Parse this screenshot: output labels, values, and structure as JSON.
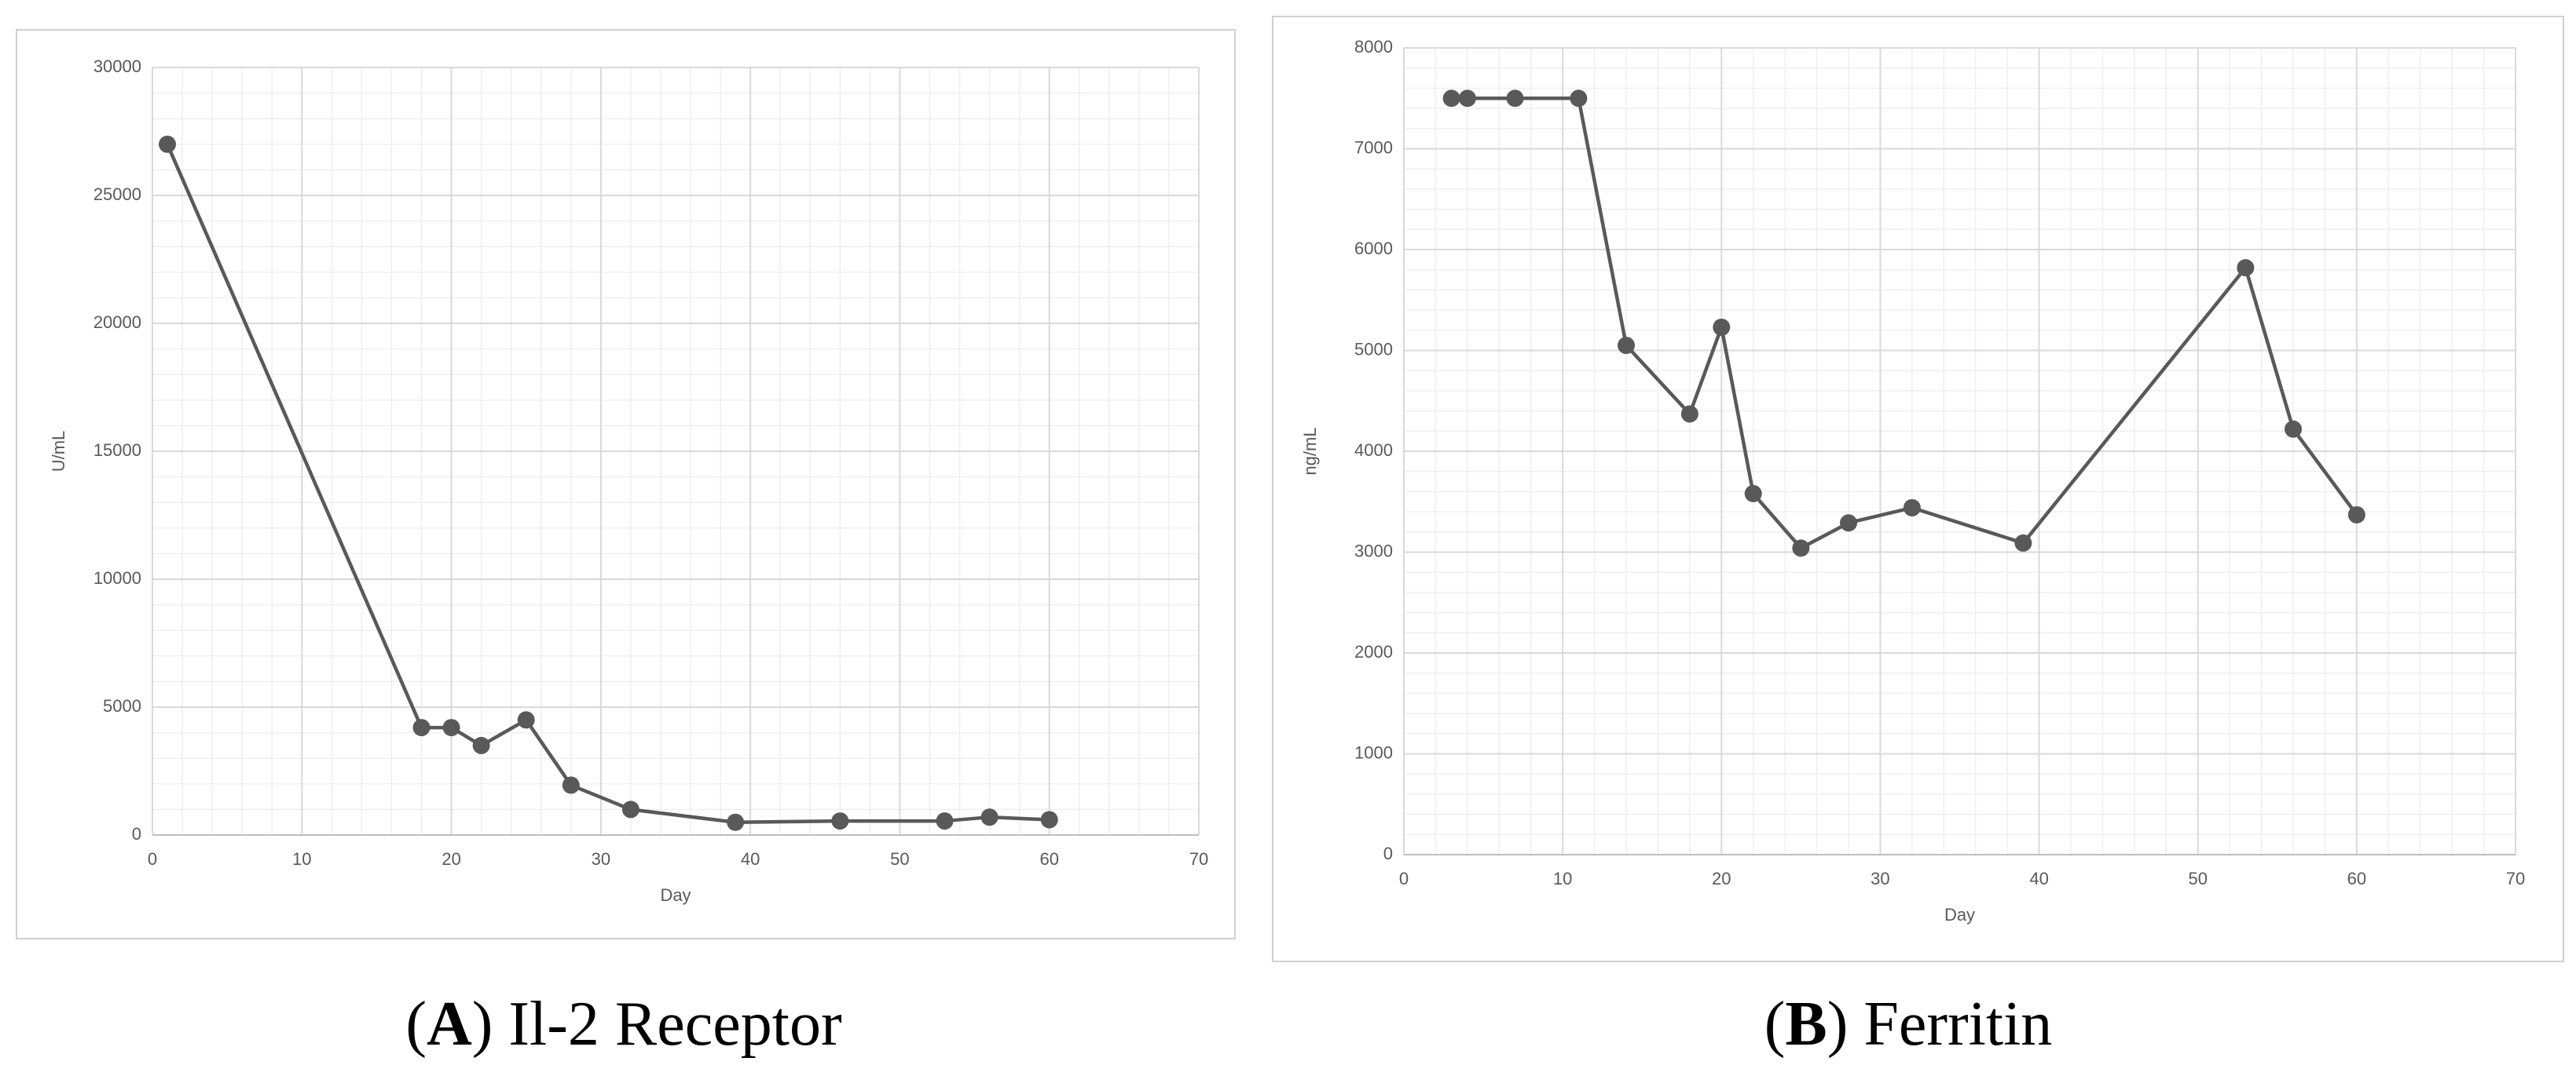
{
  "chart_data": [
    {
      "type": "line",
      "x_label": "Day",
      "y_label": "U/mL",
      "x": [
        1,
        18,
        20,
        22,
        25,
        28,
        32,
        39,
        46,
        53,
        56,
        60
      ],
      "values": [
        27000,
        4200,
        4200,
        3500,
        4500,
        1950,
        1000,
        500,
        550,
        550,
        700,
        600
      ],
      "xlim": [
        0,
        70
      ],
      "xticks": [
        0,
        10,
        20,
        30,
        40,
        50,
        60,
        70
      ],
      "ylim": [
        0,
        30000
      ],
      "yticks": [
        0,
        5000,
        10000,
        15000,
        20000,
        25000,
        30000
      ],
      "color": "#595959",
      "grid": true,
      "caption": {
        "open": "(",
        "label": "A",
        "rest": ") Il-2 Receptor"
      }
    },
    {
      "type": "line",
      "x_label": "Day",
      "y_label": "ng/mL",
      "x": [
        3,
        4,
        7,
        11,
        14,
        18,
        20,
        22,
        25,
        28,
        32,
        39,
        53,
        56,
        60
      ],
      "values": [
        7500,
        7500,
        7500,
        7500,
        5050,
        4370,
        5230,
        3580,
        3040,
        3290,
        3440,
        3090,
        5820,
        4220,
        3370
      ],
      "xlim": [
        0,
        70
      ],
      "xticks": [
        0,
        10,
        20,
        30,
        40,
        50,
        60,
        70
      ],
      "ylim": [
        0,
        8000
      ],
      "yticks": [
        0,
        1000,
        2000,
        3000,
        4000,
        5000,
        6000,
        7000,
        8000
      ],
      "color": "#595959",
      "grid": true,
      "caption": {
        "open": "(",
        "label": "B",
        "rest": ") Ferritin"
      }
    }
  ]
}
